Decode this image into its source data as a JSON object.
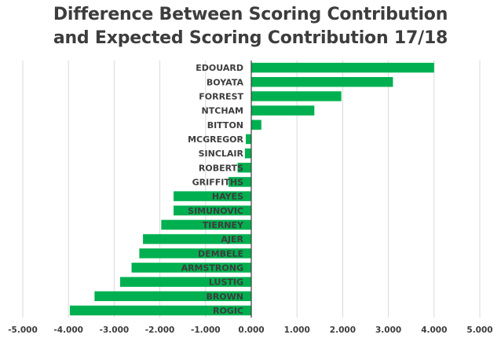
{
  "chart_data": {
    "type": "bar",
    "orientation": "horizontal",
    "title_lines": [
      "Difference Between Scoring Contribution",
      "and Expected Scoring Contribution 17/18"
    ],
    "categories": [
      "EDOUARD",
      "BOYATA",
      "FORREST",
      "NTCHAM",
      "BITTON",
      "MCGREGOR",
      "SINCLAIR",
      "ROBERTS",
      "GRIFFITHS",
      "HAYES",
      "SIMUNOVIC",
      "TIERNEY",
      "AJER",
      "DEMBELE",
      "ARMSTRONG",
      "LUSTIG",
      "BROWN",
      "ROGIC"
    ],
    "values": [
      4.0,
      3.1,
      1.97,
      1.38,
      0.22,
      -0.12,
      -0.14,
      -0.3,
      -0.5,
      -1.7,
      -1.7,
      -1.97,
      -2.37,
      -2.45,
      -2.62,
      -2.87,
      -3.43,
      -3.97
    ],
    "xlim": [
      -5,
      5
    ],
    "x_ticks": [
      "-5.000",
      "-4.000",
      "-3.000",
      "-2.000",
      "-1.000",
      "0.000",
      "1.000",
      "2.000",
      "3.000",
      "4.000",
      "5.000"
    ],
    "grid": true,
    "legend": "none",
    "bar_color": "#00b050",
    "grid_color": "#d9d9d9",
    "text_color": "#3d3d3d"
  }
}
